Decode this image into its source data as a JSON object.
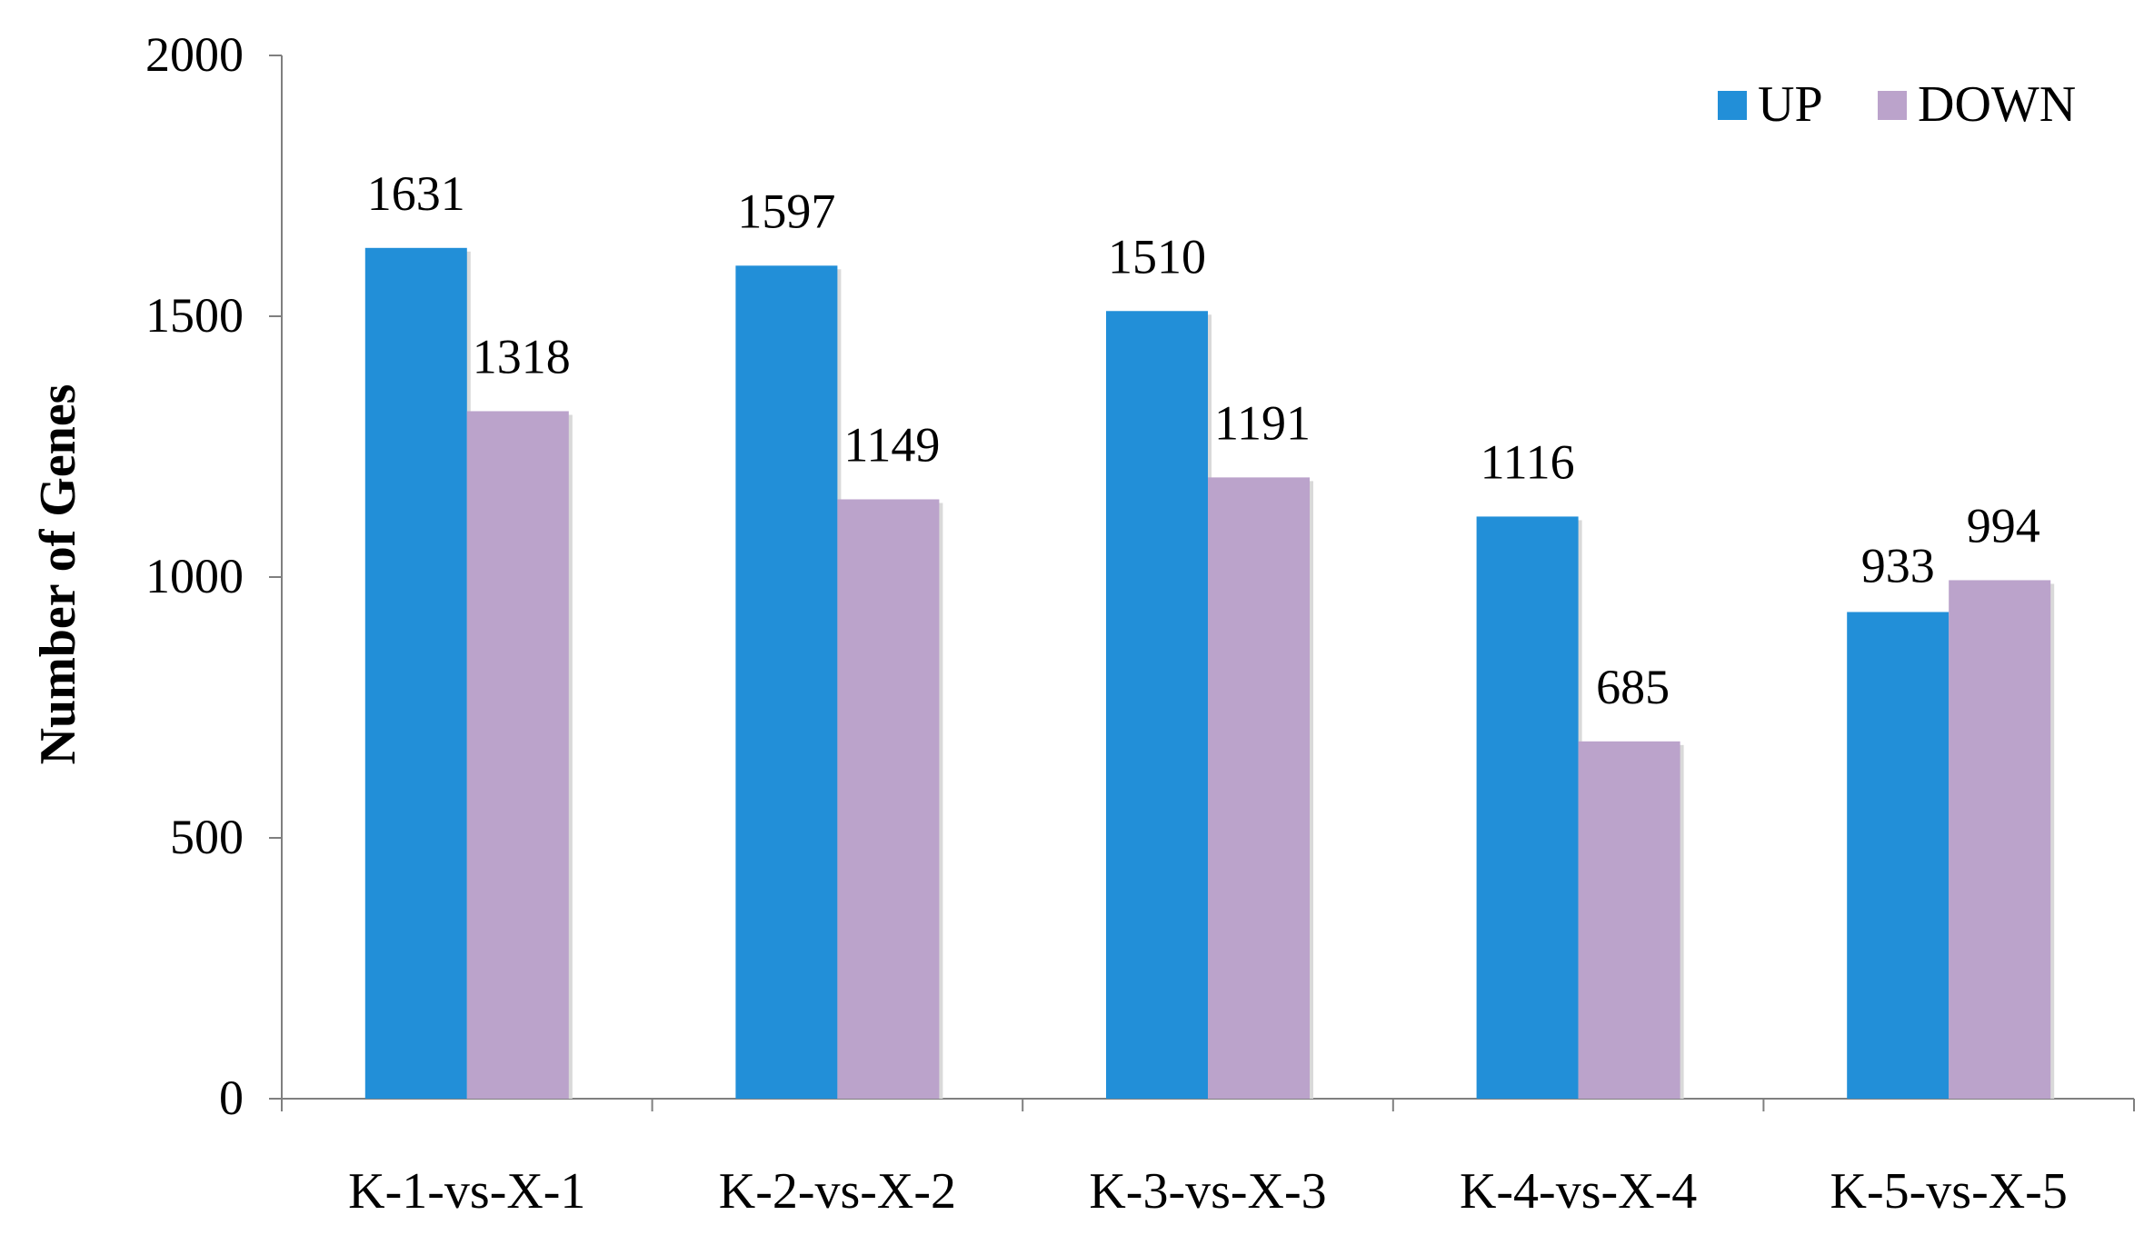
{
  "chart_data": {
    "type": "bar",
    "title": "",
    "xlabel": "",
    "ylabel": "Number of Genes",
    "ylim": [
      0,
      2000
    ],
    "yticks": [
      0,
      500,
      1000,
      1500,
      2000
    ],
    "categories": [
      "K-1-vs-X-1",
      "K-2-vs-X-2",
      "K-3-vs-X-3",
      "K-4-vs-X-4",
      "K-5-vs-X-5"
    ],
    "series": [
      {
        "name": "UP",
        "color": "#228FD8",
        "values": [
          1631,
          1597,
          1510,
          1116,
          933
        ]
      },
      {
        "name": "DOWN",
        "color": "#BBA3CB",
        "values": [
          1318,
          1149,
          1191,
          685,
          994
        ]
      }
    ],
    "legend": "top-right",
    "grid": false,
    "data_labels": true
  }
}
